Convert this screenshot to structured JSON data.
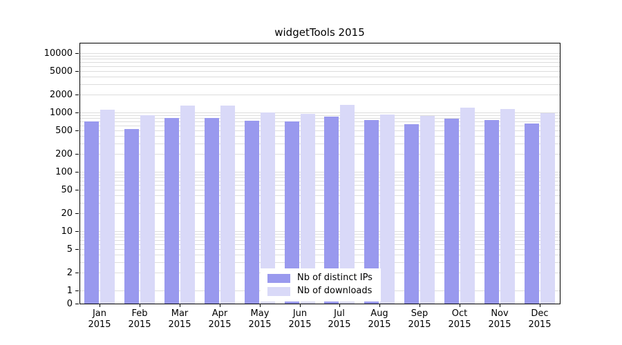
{
  "chart_data": {
    "type": "bar",
    "title": "widgetTools 2015",
    "categories": [
      "Jan",
      "Feb",
      "Mar",
      "Apr",
      "May",
      "Jun",
      "Jul",
      "Aug",
      "Sep",
      "Oct",
      "Nov",
      "Dec"
    ],
    "category_year": "2015",
    "series": [
      {
        "name": "Nb of distinct IPs",
        "color": "#9999ee",
        "values": [
          700,
          530,
          800,
          800,
          720,
          700,
          850,
          750,
          640,
          780,
          740,
          650
        ]
      },
      {
        "name": "Nb of downloads",
        "color": "#d9d9f8",
        "values": [
          1100,
          900,
          1300,
          1300,
          1000,
          950,
          1350,
          930,
          870,
          1200,
          1150,
          970
        ]
      }
    ],
    "yscale": "log",
    "yticks": [
      0,
      1,
      2,
      5,
      10,
      20,
      50,
      100,
      200,
      500,
      1000,
      2000,
      5000,
      10000
    ],
    "ylim": [
      0,
      10000
    ],
    "grid": true,
    "legend_position": "bottom-center"
  }
}
